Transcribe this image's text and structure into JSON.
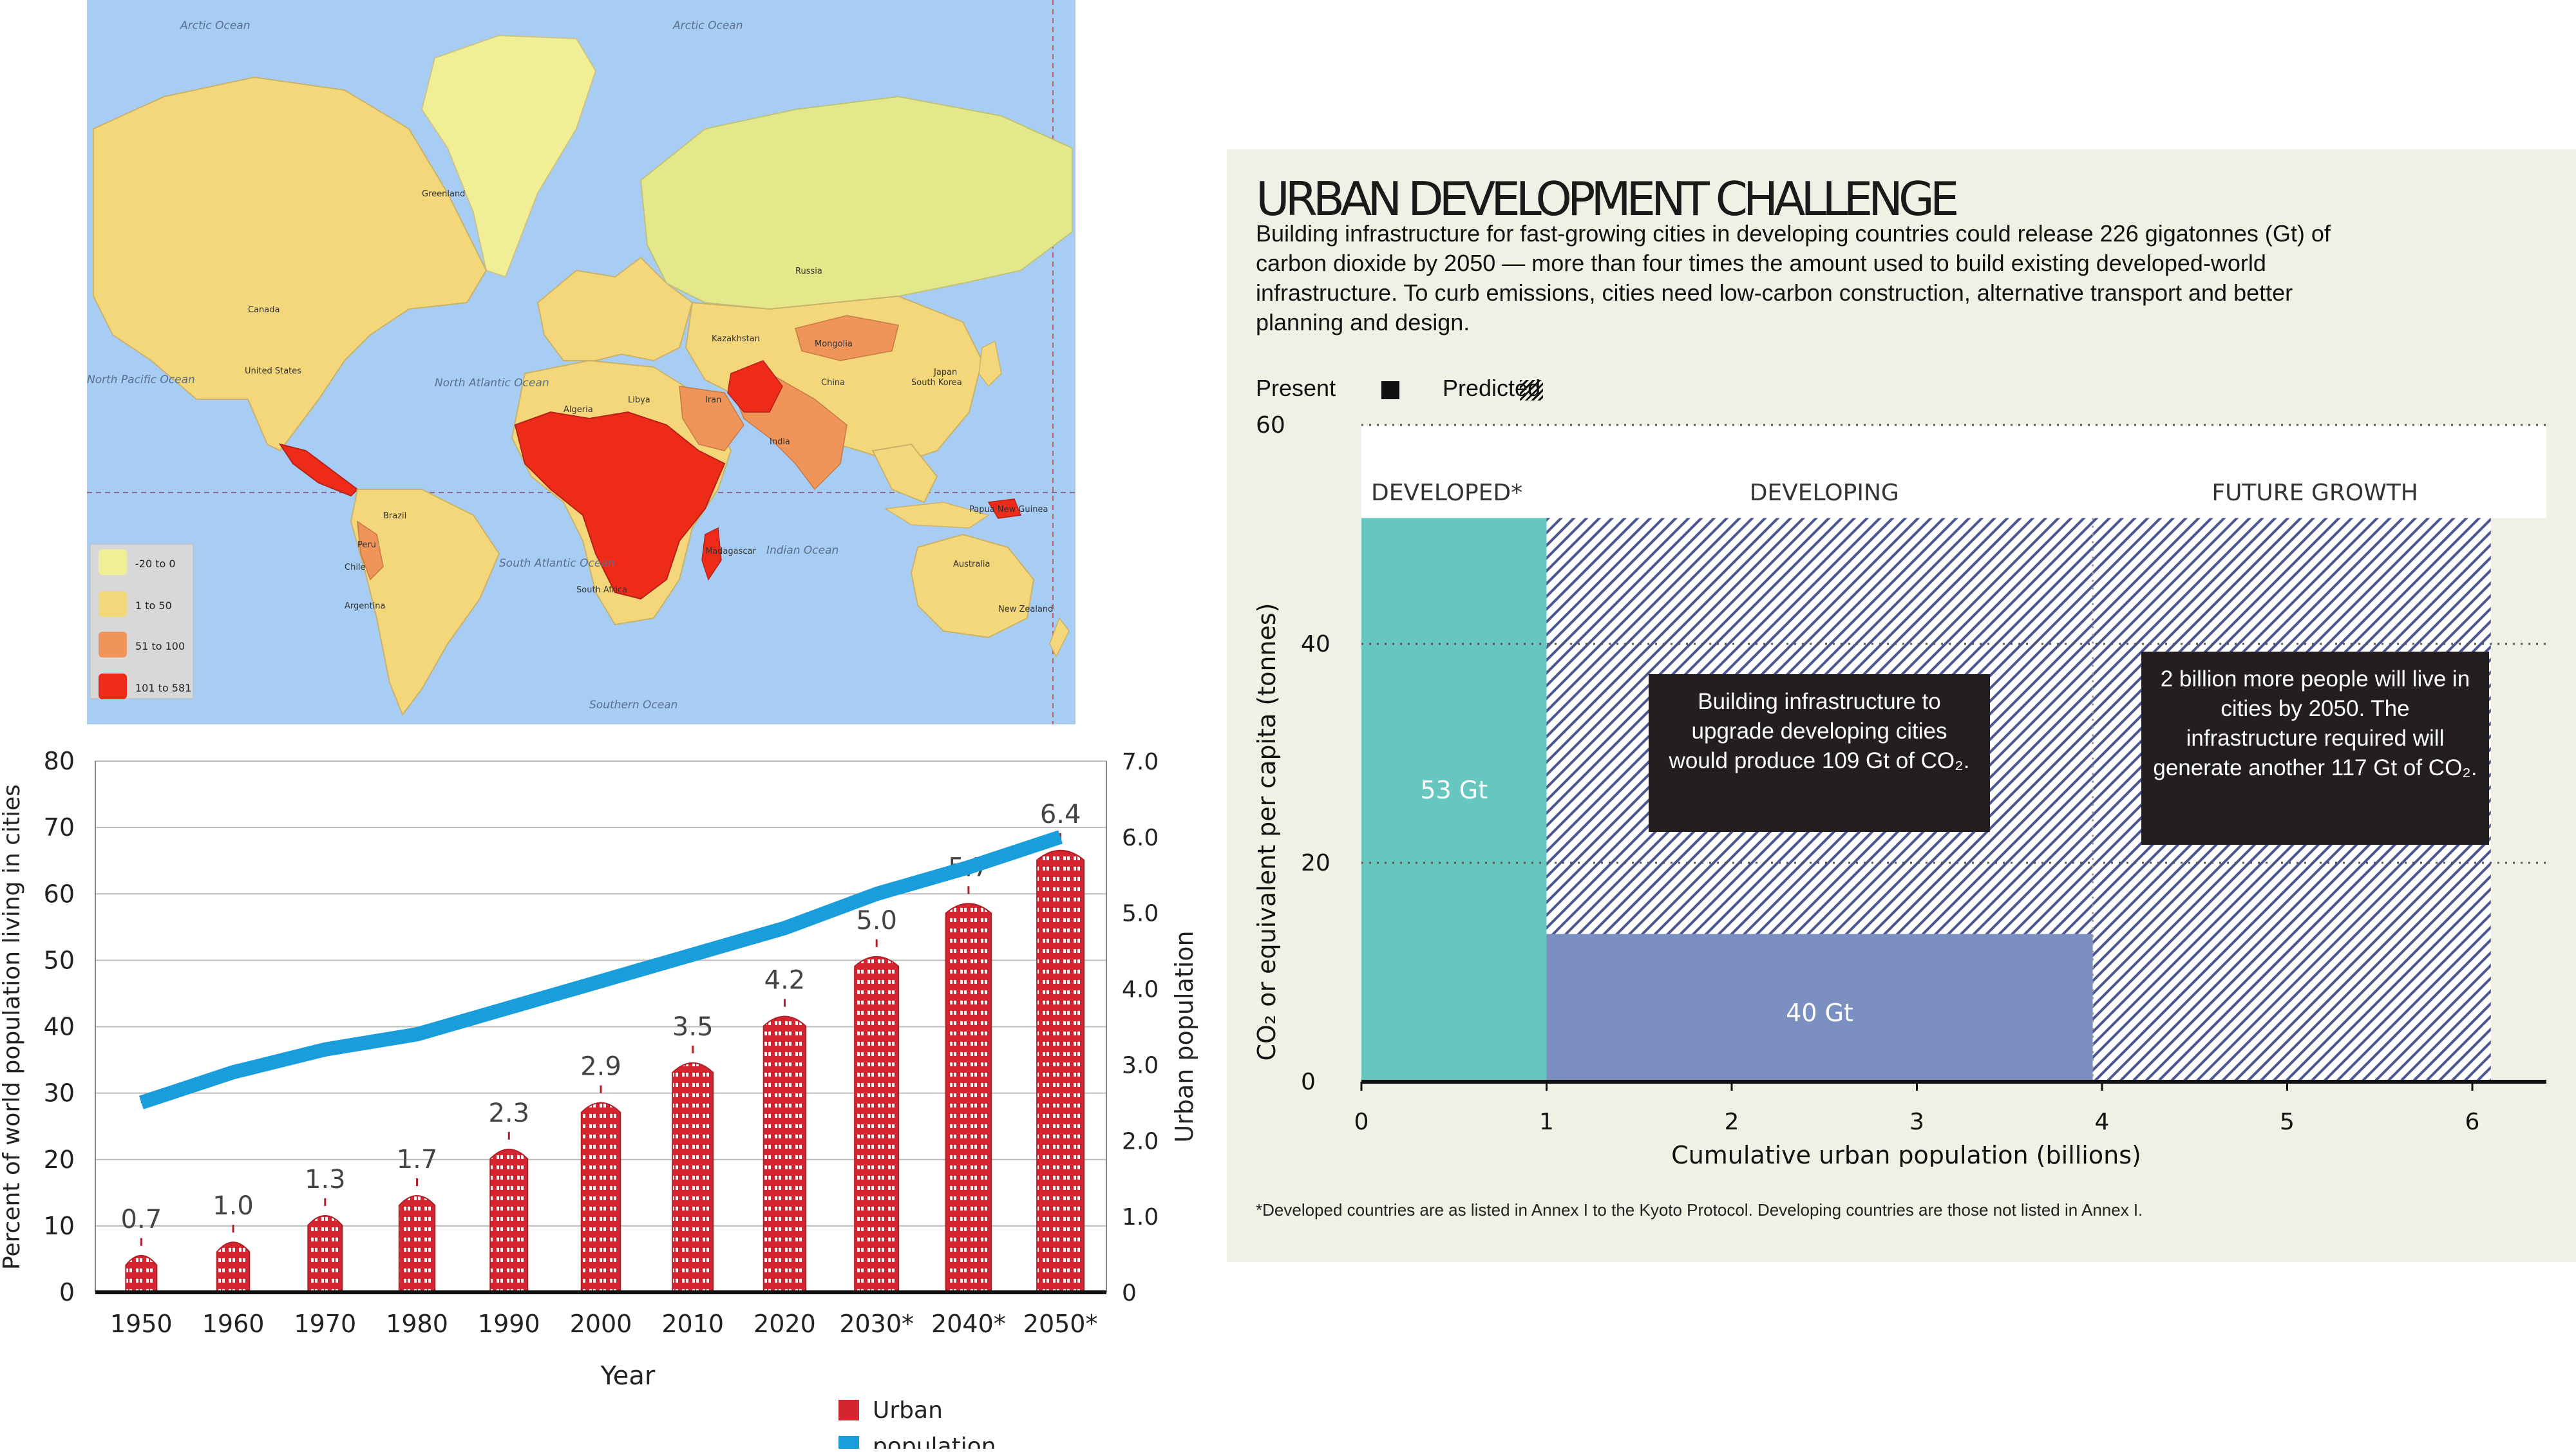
{
  "map": {
    "ocean_labels": [
      "Arctic Ocean",
      "Arctic Ocean",
      "North Pacific Ocean",
      "North Atlantic Ocean",
      "South Atlantic Ocean",
      "Indian Ocean",
      "Southern Ocean"
    ],
    "land_labels": [
      "Greenland",
      "Canada",
      "United States",
      "Russia",
      "Kazakhstan",
      "Mongolia",
      "China",
      "Brazil",
      "Australia",
      "New Zealand",
      "Madagascar",
      "Algeria",
      "Libya",
      "Iran",
      "India",
      "Peru",
      "Chile",
      "Argentina",
      "South Africa",
      "South Korea",
      "Japan",
      "Papua New Guinea"
    ],
    "legend": [
      {
        "label": "-20 to 0",
        "color": "#f0ef95"
      },
      {
        "label": "1 to 50",
        "color": "#f3d77a"
      },
      {
        "label": "51 to 100",
        "color": "#ef9559"
      },
      {
        "label": "101 to 581",
        "color": "#ee2a18"
      }
    ],
    "ocean_color": "#a8cdf5"
  },
  "pop_chart": {
    "y_left_ticks": [
      "0",
      "10",
      "20",
      "30",
      "40",
      "50",
      "60",
      "70",
      "80"
    ],
    "y_right_ticks": [
      "0",
      "1.0",
      "2.0",
      "3.0",
      "4.0",
      "5.0",
      "6.0",
      "7.0"
    ],
    "y_left_label": "Percent of world population living in cities",
    "y_right_label": "Urban population",
    "x_label": "Year",
    "legend": [
      {
        "label": "Urban",
        "color": "#d42631"
      },
      {
        "label": "population",
        "color": "#1a9ddb"
      }
    ]
  },
  "urban": {
    "title": "URBAN DEVELOPMENT CHALLENGE",
    "description": "Building infrastructure for fast-growing cities in developing countries could release 226 gigatonnes (Gt) of carbon dioxide by 2050 — more than four times the amount used to build  existing developed-world infrastructure. To curb emissions, cities need low-carbon construction,  alternative transport and better planning and design.",
    "legend_present": "Present",
    "legend_predicted": "Predicted",
    "y_label": "CO₂ or equivalent per capita (tonnes)",
    "x_label": "Cumulative urban population (billions)",
    "region_labels": [
      "DEVELOPED*",
      "DEVELOPING",
      "FUTURE GROWTH"
    ],
    "annotation_1": "Building infrastructure  to upgrade developing  cities would produce  109 Gt of CO₂.",
    "annotation_2": "2 billion more people  will live in cities by  2050. The infrastructure  required will generate  another 117 Gt of CO₂.",
    "footnote": "*Developed countries are as listed in Annex I to the Kyoto Protocol. Developing countries are those not listed in Annex I.",
    "colors": {
      "developed": "#65c7bf",
      "developing_present": "#7b8fc1",
      "hatch": "#4a5591",
      "background": "#f1f0e5"
    }
  },
  "chart_data": [
    {
      "type": "bar",
      "title": "",
      "categories": [
        "1950",
        "1960",
        "1970",
        "1980",
        "1990",
        "2000",
        "2010",
        "2020",
        "2030*",
        "2040*",
        "2050*"
      ],
      "series": [
        {
          "name": "Urban",
          "axis": "left",
          "values": [
            7,
            9,
            13,
            16,
            23,
            30,
            36,
            43,
            52,
            60,
            68
          ],
          "labels": [
            "0.7",
            "1.0",
            "1.3",
            "1.7",
            "2.3",
            "2.9",
            "3.5",
            "4.2",
            "5.0",
            "5.7",
            "6.4"
          ]
        },
        {
          "name": "population",
          "type": "line",
          "axis": "right",
          "values": [
            2.5,
            2.9,
            3.2,
            3.4,
            3.75,
            4.1,
            4.45,
            4.8,
            5.25,
            5.6,
            6.0
          ]
        }
      ],
      "xlabel": "Year",
      "ylabel": "Percent of world population living in cities",
      "ylabel_right": "Urban population",
      "ylim": [
        0,
        80
      ],
      "ylim_right": [
        0,
        7
      ],
      "grid": true
    },
    {
      "type": "area",
      "title": "URBAN DEVELOPMENT CHALLENGE",
      "xlabel": "Cumulative urban population (billions)",
      "ylabel": "CO₂ or equivalent per capita (tonnes)",
      "xlim": [
        0,
        6.4
      ],
      "ylim": [
        0,
        60
      ],
      "x_ticks": [
        "0",
        "1",
        "2",
        "3",
        "4",
        "5",
        "6"
      ],
      "y_ticks": [
        "0",
        "20",
        "40",
        "60"
      ],
      "blocks": [
        {
          "name": "DEVELOPED*",
          "label": "53 Gt",
          "x0": 0,
          "x1": 1,
          "y": 51.5,
          "style": "present"
        },
        {
          "name": "DEVELOPING",
          "label": "40 Gt",
          "x0": 1,
          "x1": 3.95,
          "y": 13.5,
          "style": "present"
        },
        {
          "name": "DEVELOPING",
          "label": "109 Gt",
          "x0": 1,
          "x1": 3.95,
          "y": 51.5,
          "style": "predicted"
        },
        {
          "name": "FUTURE GROWTH",
          "label": "117 Gt",
          "x0": 3.95,
          "x1": 6.1,
          "y": 51.5,
          "style": "predicted"
        }
      ],
      "grid": true
    }
  ]
}
